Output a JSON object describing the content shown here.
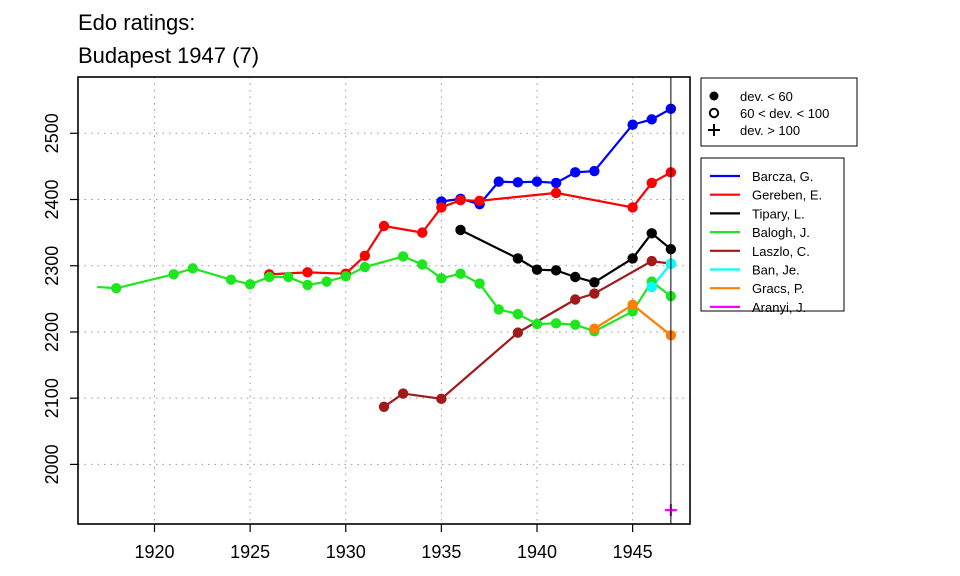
{
  "chart_data": {
    "type": "line",
    "title_lines": [
      "Edo ratings:",
      "Budapest 1947 (7)"
    ],
    "xlim": [
      1916,
      1948
    ],
    "ylim": [
      1910,
      2585
    ],
    "x_ticks": [
      1920,
      1925,
      1930,
      1935,
      1940,
      1945
    ],
    "y_ticks": [
      2000,
      2100,
      2200,
      2300,
      2400,
      2500
    ],
    "grid": true,
    "current_year_marker": 1947,
    "marker_legend": [
      {
        "symbol": "filled-circle",
        "label": "dev. < 60"
      },
      {
        "symbol": "open-circle",
        "label": "60 < dev. < 100"
      },
      {
        "symbol": "plus",
        "label": "dev. > 100"
      }
    ],
    "series": [
      {
        "name": "Barcza, G.",
        "color": "#0000ff",
        "points": [
          {
            "x": 1935,
            "y": 2397
          },
          {
            "x": 1936,
            "y": 2401
          },
          {
            "x": 1937,
            "y": 2393
          },
          {
            "x": 1938,
            "y": 2427
          },
          {
            "x": 1939,
            "y": 2426
          },
          {
            "x": 1940,
            "y": 2427
          },
          {
            "x": 1941,
            "y": 2425
          },
          {
            "x": 1942,
            "y": 2441
          },
          {
            "x": 1943,
            "y": 2443
          },
          {
            "x": 1945,
            "y": 2513
          },
          {
            "x": 1946,
            "y": 2521
          },
          {
            "x": 1947,
            "y": 2537
          }
        ]
      },
      {
        "name": "Gereben, E.",
        "color": "#ff0000",
        "points": [
          {
            "x": 1926,
            "y": 2287
          },
          {
            "x": 1928,
            "y": 2290
          },
          {
            "x": 1930,
            "y": 2288
          },
          {
            "x": 1931,
            "y": 2315
          },
          {
            "x": 1932,
            "y": 2360
          },
          {
            "x": 1934,
            "y": 2350
          },
          {
            "x": 1935,
            "y": 2388
          },
          {
            "x": 1936,
            "y": 2399
          },
          {
            "x": 1937,
            "y": 2398
          },
          {
            "x": 1941,
            "y": 2410
          },
          {
            "x": 1945,
            "y": 2388
          },
          {
            "x": 1946,
            "y": 2425
          },
          {
            "x": 1947,
            "y": 2441
          }
        ]
      },
      {
        "name": "Tipary, L.",
        "color": "#000000",
        "points": [
          {
            "x": 1936,
            "y": 2354
          },
          {
            "x": 1939,
            "y": 2311
          },
          {
            "x": 1940,
            "y": 2294
          },
          {
            "x": 1941,
            "y": 2293
          },
          {
            "x": 1942,
            "y": 2283
          },
          {
            "x": 1943,
            "y": 2275
          },
          {
            "x": 1945,
            "y": 2311
          },
          {
            "x": 1946,
            "y": 2349
          },
          {
            "x": 1947,
            "y": 2325
          }
        ]
      },
      {
        "name": "Balogh, J.",
        "color": "#1ee61e",
        "lead_in_x": 1917,
        "lead_in_y": 2268,
        "points": [
          {
            "x": 1918,
            "y": 2266
          },
          {
            "x": 1921,
            "y": 2287
          },
          {
            "x": 1922,
            "y": 2296
          },
          {
            "x": 1924,
            "y": 2279
          },
          {
            "x": 1925,
            "y": 2272
          },
          {
            "x": 1926,
            "y": 2283
          },
          {
            "x": 1927,
            "y": 2283
          },
          {
            "x": 1928,
            "y": 2271
          },
          {
            "x": 1929,
            "y": 2276
          },
          {
            "x": 1930,
            "y": 2284
          },
          {
            "x": 1931,
            "y": 2298
          },
          {
            "x": 1933,
            "y": 2314
          },
          {
            "x": 1934,
            "y": 2302
          },
          {
            "x": 1935,
            "y": 2281
          },
          {
            "x": 1936,
            "y": 2288
          },
          {
            "x": 1937,
            "y": 2273
          },
          {
            "x": 1938,
            "y": 2234
          },
          {
            "x": 1939,
            "y": 2227
          },
          {
            "x": 1940,
            "y": 2212
          },
          {
            "x": 1941,
            "y": 2213
          },
          {
            "x": 1942,
            "y": 2211
          },
          {
            "x": 1943,
            "y": 2201
          },
          {
            "x": 1945,
            "y": 2231
          },
          {
            "x": 1946,
            "y": 2276
          },
          {
            "x": 1947,
            "y": 2254
          }
        ]
      },
      {
        "name": "Laszlo, C.",
        "color": "#a01a1a",
        "points": [
          {
            "x": 1932,
            "y": 2087
          },
          {
            "x": 1933,
            "y": 2107
          },
          {
            "x": 1935,
            "y": 2099
          },
          {
            "x": 1939,
            "y": 2199
          },
          {
            "x": 1942,
            "y": 2249
          },
          {
            "x": 1943,
            "y": 2258
          },
          {
            "x": 1946,
            "y": 2307
          },
          {
            "x": 1947,
            "y": 2303
          }
        ]
      },
      {
        "name": "Ban, Je.",
        "color": "#00ffff",
        "points": [
          {
            "x": 1946,
            "y": 2268
          },
          {
            "x": 1947,
            "y": 2303
          }
        ]
      },
      {
        "name": "Gracs, P.",
        "color": "#ff7f00",
        "points": [
          {
            "x": 1943,
            "y": 2205
          },
          {
            "x": 1945,
            "y": 2241
          },
          {
            "x": 1947,
            "y": 2195
          }
        ]
      },
      {
        "name": "Aranyi, J.",
        "color": "#ff00ff",
        "marker": "plus",
        "points": [
          {
            "x": 1947,
            "y": 1931
          }
        ]
      }
    ]
  }
}
